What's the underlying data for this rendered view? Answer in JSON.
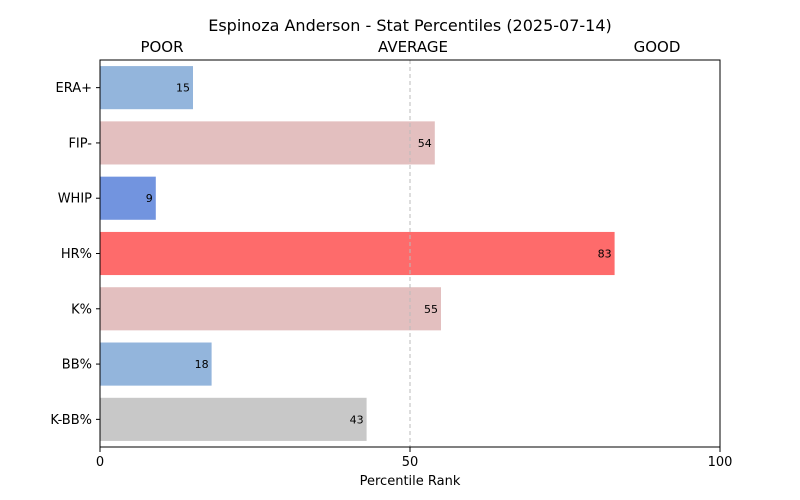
{
  "chart_data": {
    "type": "bar",
    "orientation": "horizontal",
    "title": "Espinoza Anderson - Stat Percentiles (2025-07-14)",
    "xlabel": "Percentile Rank",
    "ylabel": "",
    "xlim": [
      0,
      100
    ],
    "x_ticks": [
      0,
      50,
      100
    ],
    "reference_line": 50,
    "scale_labels": [
      "POOR",
      "AVERAGE",
      "GOOD"
    ],
    "grid": false,
    "categories": [
      "ERA+",
      "FIP-",
      "WHIP",
      "HR%",
      "K%",
      "BB%",
      "K-BB%"
    ],
    "values": [
      15,
      54,
      9,
      83,
      55,
      18,
      43
    ],
    "colors": [
      "#93b5dc",
      "#e3bfbf",
      "#7294df",
      "#fe6b6b",
      "#e3bfbf",
      "#93b5dc",
      "#c8c8c8"
    ]
  }
}
